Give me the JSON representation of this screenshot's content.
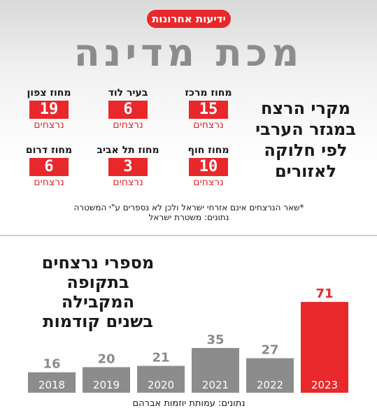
{
  "header": {
    "logo": "ידיעות אחרונות",
    "headline": "מכת מדינה"
  },
  "regions": {
    "title_lines": [
      "מקרי הרצח",
      "במגזר הערבי",
      "לפי חלוקה",
      "לאזורים"
    ],
    "unit": "נרצחים",
    "items": [
      {
        "name": "מחוז צפון",
        "count": "19"
      },
      {
        "name": "בעיר לוד",
        "count": "6"
      },
      {
        "name": "מחוז מרכז",
        "count": "15"
      },
      {
        "name": "מחוז דרום",
        "count": "6"
      },
      {
        "name": "מחוז תל אביב",
        "count": "3"
      },
      {
        "name": "מחוז חוף",
        "count": "10"
      }
    ],
    "footnote": "*שאר הנרצחים אינם אזרחי ישראל ולכן לא נספרים ע\"י המשטרה",
    "source": "נתונים: משטרת ישראל"
  },
  "chart_data": {
    "type": "bar",
    "title_lines": [
      "מספרי נרצחים",
      "בתקופה",
      "המקבילה",
      "בשנים קודמות"
    ],
    "categories": [
      "2018",
      "2019",
      "2020",
      "2021",
      "2022",
      "2023"
    ],
    "values": [
      16,
      20,
      21,
      35,
      27,
      71
    ],
    "colors": [
      "#8c8c8c",
      "#8c8c8c",
      "#8c8c8c",
      "#8c8c8c",
      "#8c8c8c",
      "#e8282b"
    ],
    "value_label_colors": [
      "#8c8c8c",
      "#8c8c8c",
      "#8c8c8c",
      "#8c8c8c",
      "#8c8c8c",
      "#e8282b"
    ],
    "ylim": [
      0,
      80
    ],
    "source": "נתונים: עמותת יוזמות אברהם"
  }
}
